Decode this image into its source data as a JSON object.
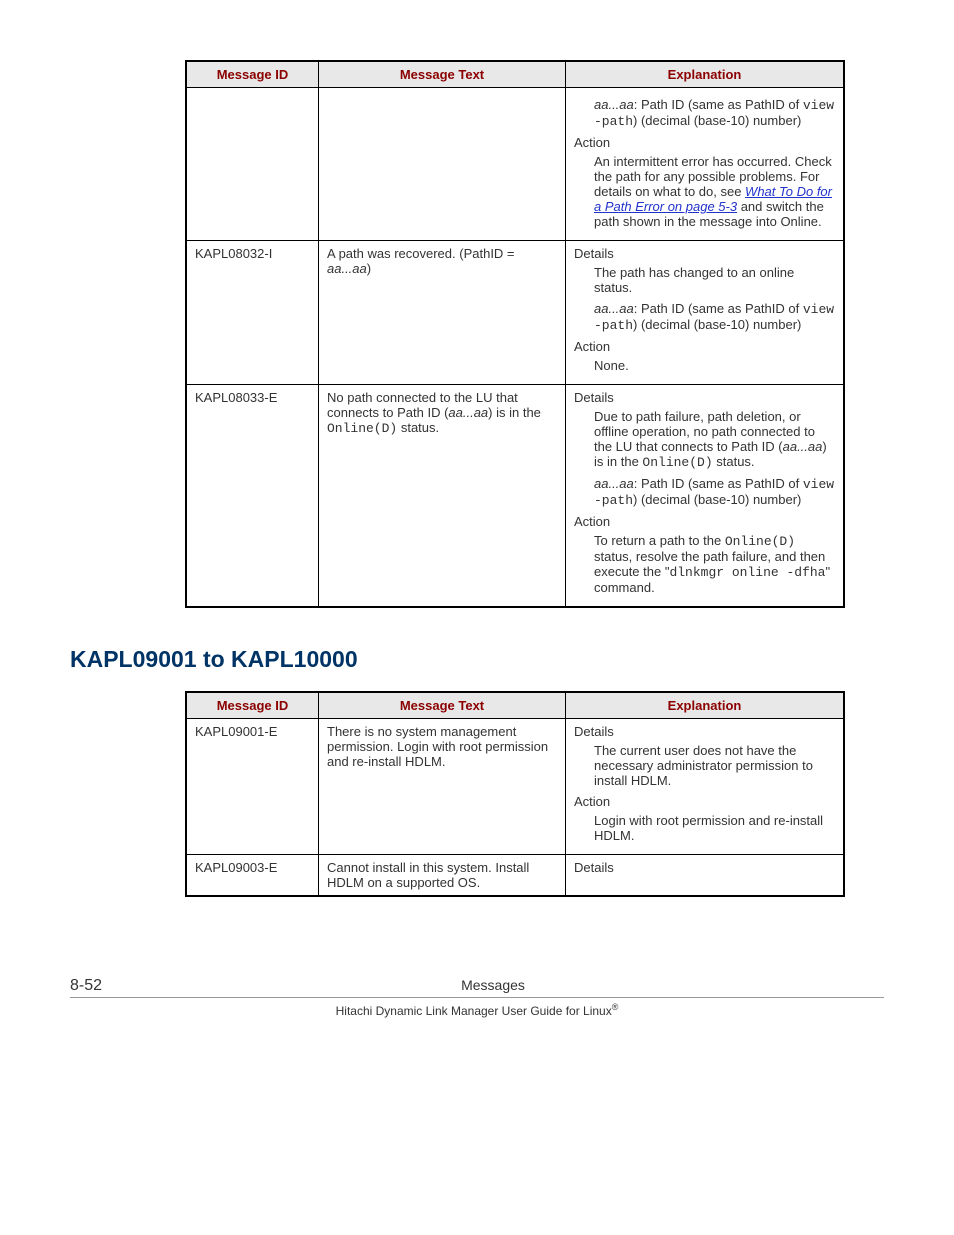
{
  "table1": {
    "headers": [
      "Message ID",
      "Message Text",
      "Explanation"
    ],
    "rows": [
      {
        "id": "",
        "text": "",
        "exp": {
          "pathid_pre": "aa...aa",
          "pathid_mid": ": Path ID (same as PathID of ",
          "pathid_mono": "view -path",
          "pathid_post": ") (decimal (base-10) number)",
          "action_label": "Action",
          "action_pre": "An intermittent error has occurred. Check the path for any possible problems. For details on what to do, see ",
          "action_link": "What To Do for a Path Error on page 5-3",
          "action_post": " and switch the path shown in the message into Online."
        }
      },
      {
        "id": "KAPL08032-I",
        "text_pre": "A path was recovered. (PathID = ",
        "text_it": "aa...aa",
        "text_post": ")",
        "exp": {
          "details_label": "Details",
          "details_body": "The path has changed to an online status.",
          "pathid_pre": "aa...aa",
          "pathid_mid": ": Path ID (same as PathID of ",
          "pathid_mono": "view -path",
          "pathid_post": ") (decimal (base-10) number)",
          "action_label": "Action",
          "action_body": "None."
        }
      },
      {
        "id": "KAPL08033-E",
        "text_pre": "No path connected to the LU that connects to Path ID (",
        "text_it": "aa...aa",
        "text_mid": ") is in the ",
        "text_mono": "Online(D)",
        "text_post": " status.",
        "exp": {
          "details_label": "Details",
          "details_pre": "Due to path failure, path deletion, or offline operation, no path connected to the LU that connects to Path ID (",
          "details_it": "aa...aa",
          "details_mid": ") is in the ",
          "details_mono": "Online(D)",
          "details_post": " status.",
          "pathid_pre": "aa...aa",
          "pathid_mid": ": Path ID (same as PathID of ",
          "pathid_mono": "view -path",
          "pathid_post": ") (decimal (base-10) number)",
          "action_label": "Action",
          "action_pre": "To return a path to the ",
          "action_mono1": "Online(D)",
          "action_mid": " status, resolve the path failure, and then execute the \"",
          "action_mono2": "dlnkmgr online -dfha",
          "action_post": "\" command."
        }
      }
    ]
  },
  "section_heading": "KAPL09001 to KAPL10000",
  "table2": {
    "headers": [
      "Message ID",
      "Message Text",
      "Explanation"
    ],
    "rows": [
      {
        "id": "KAPL09001-E",
        "text": "There is no system management permission. Login with root permission and re-install HDLM.",
        "exp": {
          "details_label": "Details",
          "details_body": "The current user does not have the necessary administrator permission to install HDLM.",
          "action_label": "Action",
          "action_body": "Login with root permission and re-install HDLM."
        }
      },
      {
        "id": "KAPL09003-E",
        "text": "Cannot install in this system. Install HDLM on a supported OS.",
        "exp": {
          "details_label": "Details"
        }
      }
    ]
  },
  "footer": {
    "page": "8-52",
    "title": "Messages",
    "sub_pre": "Hitachi Dynamic Link Manager User Guide for Linux",
    "sub_sup": "®"
  }
}
